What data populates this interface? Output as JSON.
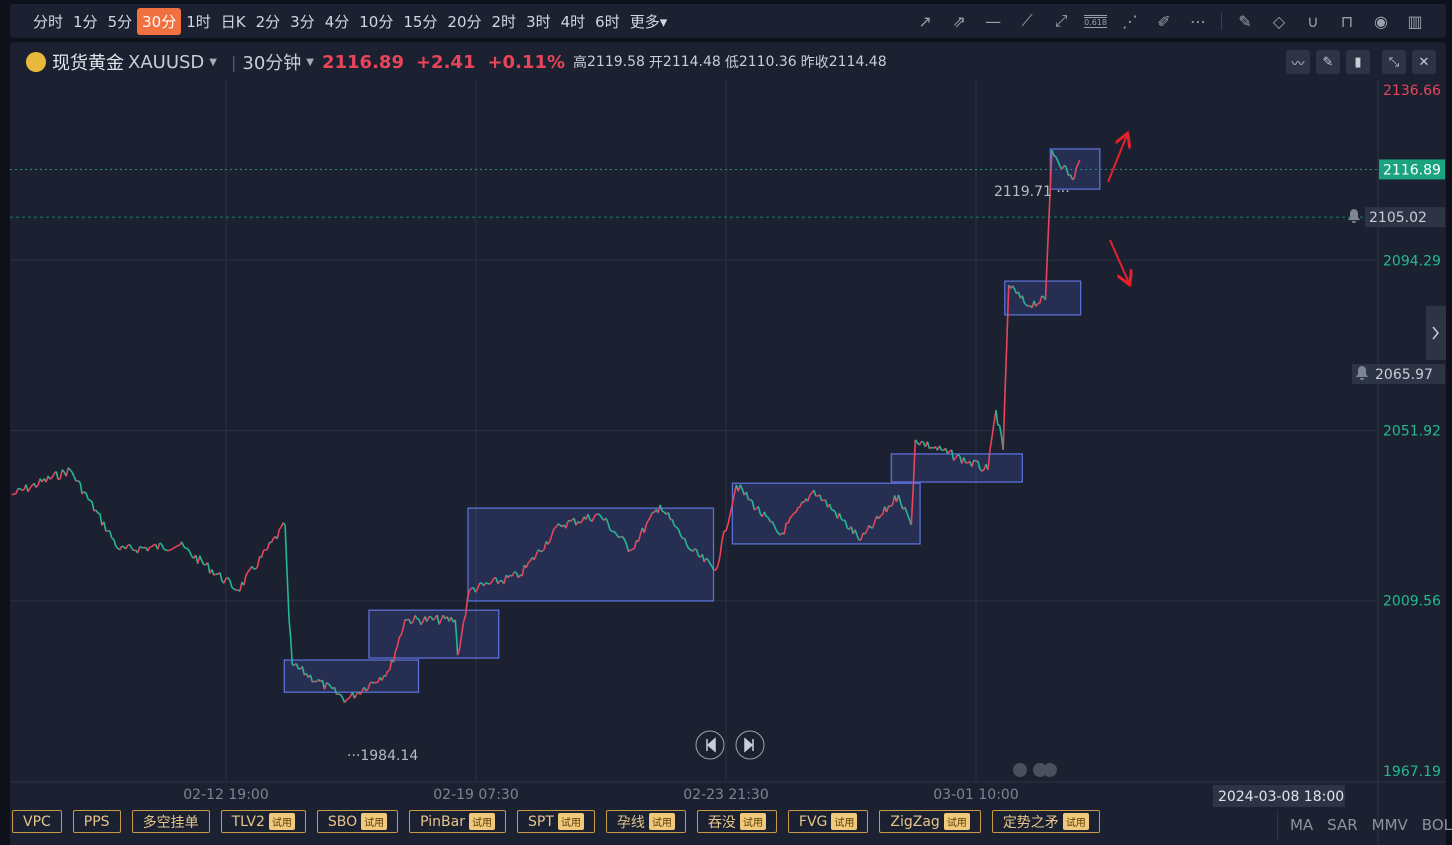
{
  "periods": [
    "分时",
    "1分",
    "5分",
    "30分",
    "1时",
    "日K",
    "2分",
    "3分",
    "4分",
    "10分",
    "15分",
    "20分",
    "2时",
    "3时",
    "4时",
    "6时",
    "更多"
  ],
  "active_period": "30分",
  "tools": {
    "left": [
      "arrow-icon",
      "dashed-arrow-icon",
      "horizontal-ray-icon",
      "trend-line-icon",
      "segment-icon",
      "fibonacci-icon",
      "fan-icon",
      "highlighter-icon",
      "more-icon"
    ],
    "right": [
      "edit-note-icon",
      "eraser-icon",
      "magnet-icon",
      "unlock-icon",
      "eye-icon",
      "trash-icon"
    ],
    "fib_label": "0.618"
  },
  "header": {
    "name": "现货黄金",
    "symbol": "XAUUSD",
    "interval": "30分钟",
    "price": "2116.89",
    "change": "+2.41",
    "change_pct": "+0.11%",
    "high_label": "高",
    "high": "2119.58",
    "open_label": "开",
    "open": "2114.48",
    "low_label": "低",
    "low": "2110.36",
    "prev_label": "昨收",
    "prev": "2114.48"
  },
  "colors": {
    "up": "#e8455a",
    "down": "#25b896",
    "accent": "#f0703f",
    "box": "#5b6fd6",
    "arrow": "#e8202a"
  },
  "chart_data": {
    "type": "line",
    "y_ticks": [
      "2136.66",
      "2094.29",
      "2051.92",
      "2009.56",
      "1967.19"
    ],
    "ylim": [
      1967.19,
      2136.66
    ],
    "x_ticks": [
      "02-12 19:00",
      "02-19 07:30",
      "02-23 21:30",
      "03-01 10:00"
    ],
    "grid": true,
    "series": [
      {
        "x": [
          "02-07 05:00",
          "02-08 17:30",
          "02-10 00:30",
          "02-11 14:00",
          "02-13 02:30",
          "02-14 08:00",
          "02-14 10:30",
          "02-14 12:30",
          "02-15 22:30",
          "02-17 01:30",
          "02-17 11:00",
          "02-18 18:30",
          "02-18 20:00",
          "02-19 03:30",
          "02-20 03:00",
          "02-20 20:30",
          "02-21 14:00",
          "02-22 03:30",
          "02-22 16:30",
          "02-23 06:00",
          "02-23 17:00",
          "02-24 04:00",
          "02-25 07:30",
          "02-26 04:30",
          "02-27 10:00",
          "02-28 09:30",
          "02-28 17:30",
          "02-28 20:00",
          "03-01 17:30",
          "03-01 22:30",
          "03-02 03:00",
          "03-02 06:30",
          "03-02 17:30",
          "03-03 05:30",
          "03-03 09:30",
          "03-03 22:30",
          "03-04 03:00"
        ],
        "y": [
          2035.9,
          2042.1,
          2022.2,
          2023.4,
          2012.2,
          2028.4,
          2004.8,
          1993.6,
          1984.9,
          1992.3,
          2004.8,
          2004.8,
          1996.0,
          2012.2,
          2016.0,
          2028.4,
          2030.9,
          2022.2,
          2033.4,
          2022.2,
          2017.2,
          2038.4,
          2025.9,
          2037.1,
          2024.7,
          2035.9,
          2028.4,
          2049.6,
          2042.1,
          2057.0,
          2047.1,
          2088.1,
          2083.2,
          2084.4,
          2121.7,
          2114.3,
          2119.2
        ]
      }
    ],
    "annotations": {
      "high_label": "2119.71",
      "low_label": "1984.14",
      "last_price": "2116.89",
      "alert_1": "2105.02",
      "alert_2": "2065.97",
      "cursor_time": "2024-03-08 18:00",
      "boxes": [
        {
          "t0": "02-14 07:30",
          "t1": "02-17 19:30",
          "p0": 1986.8,
          "p1": 1994.8
        },
        {
          "t0": "02-16 12:30",
          "t1": "02-19 17:30",
          "p0": 1995.3,
          "p1": 2007.2
        },
        {
          "t0": "02-19 02:30",
          "t1": "02-23 16:00",
          "p0": 2009.5,
          "p1": 2032.6
        },
        {
          "t0": "02-24 01:30",
          "t1": "02-28 23:00",
          "p0": 2023.7,
          "p1": 2038.8
        },
        {
          "t0": "02-28 05:00",
          "t1": "03-02 15:00",
          "p0": 2039.1,
          "p1": 2046.1
        },
        {
          "t0": "03-02 04:00",
          "t1": "03-04 03:30",
          "p0": 2080.7,
          "p1": 2089.1
        },
        {
          "t0": "03-03 08:30",
          "t1": "03-04 15:30",
          "p0": 2112.0,
          "p1": 2122.0
        }
      ]
    }
  },
  "indicators": [
    {
      "label": "VPC"
    },
    {
      "label": "PPS"
    },
    {
      "label": "多空挂单"
    },
    {
      "label": "TLV2",
      "trial": "试用"
    },
    {
      "label": "SBO",
      "trial": "试用"
    },
    {
      "label": "PinBar",
      "trial": "试用"
    },
    {
      "label": "SPT",
      "trial": "试用"
    },
    {
      "label": "孕线",
      "trial": "试用"
    },
    {
      "label": "吞没",
      "trial": "试用"
    },
    {
      "label": "FVG",
      "trial": "试用"
    },
    {
      "label": "ZigZag",
      "trial": "试用"
    },
    {
      "label": "定势之矛",
      "trial": "试用"
    }
  ],
  "main_indicators": [
    "MA",
    "SAR",
    "MMV",
    "BOL"
  ]
}
